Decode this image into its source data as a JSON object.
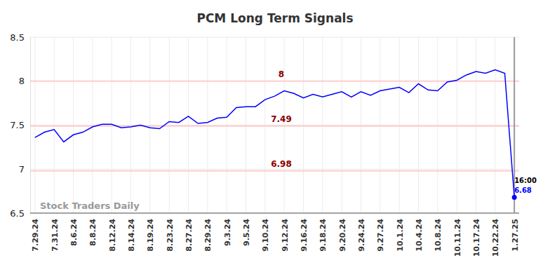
{
  "chart_data": {
    "type": "line",
    "title": "PCM Long Term Signals",
    "watermark": "Stock Traders Daily",
    "time_label": "16:00",
    "categories": [
      "7.29.24",
      null,
      "7.31.24",
      null,
      "8.6.24",
      null,
      "8.8.24",
      null,
      "8.12.24",
      null,
      "8.14.24",
      null,
      "8.19.24",
      null,
      "8.23.24",
      null,
      "8.27.24",
      null,
      "8.29.24",
      null,
      "9.3.24",
      null,
      "9.5.24",
      null,
      "9.10.24",
      null,
      "9.12.24",
      null,
      "9.16.24",
      null,
      "9.18.24",
      null,
      "9.20.24",
      null,
      "9.24.24",
      null,
      "9.27.24",
      null,
      "10.1.24",
      null,
      "10.4.24",
      null,
      "10.8.24",
      null,
      "10.11.24",
      null,
      "10.17.24",
      null,
      "10.22.24",
      null,
      "1.27.25"
    ],
    "values": [
      7.36,
      7.42,
      7.45,
      7.31,
      7.39,
      7.42,
      7.48,
      7.51,
      7.51,
      7.47,
      7.48,
      7.5,
      7.47,
      7.46,
      7.54,
      7.53,
      7.6,
      7.52,
      7.53,
      7.58,
      7.59,
      7.7,
      7.71,
      7.71,
      7.79,
      7.83,
      7.89,
      7.86,
      7.81,
      7.85,
      7.82,
      7.85,
      7.88,
      7.82,
      7.88,
      7.84,
      7.89,
      7.91,
      7.93,
      7.87,
      7.97,
      7.9,
      7.89,
      7.99,
      8.01,
      8.07,
      8.11,
      8.09,
      8.13,
      8.09,
      6.68
    ],
    "color": "#0000ff",
    "reference_lines": [
      8,
      7.49,
      6.98
    ],
    "ylim": [
      6.5,
      8.5
    ],
    "yticks": [
      6.5,
      7,
      7.5,
      8,
      8.5
    ],
    "grid": true
  }
}
